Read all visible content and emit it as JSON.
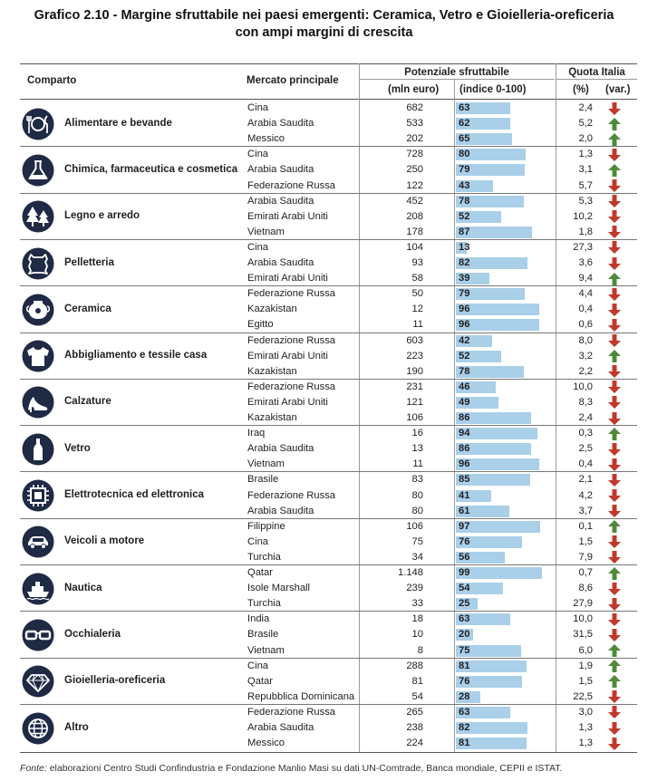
{
  "title_line1": "Grafico 2.10 - Margine sfruttabile nei paesi emergenti: Ceramica, Vetro e Gioielleria-oreficeria",
  "title_line2": "con ampi margini di crescita",
  "headers": {
    "comparto": "Comparto",
    "mercato": "Mercato principale",
    "potenziale": "Potenziale sfruttabile",
    "mln": "(mln euro)",
    "indice": "(indice 0-100)",
    "quota": "Quota Italia",
    "perc": "(%)",
    "var": "(var.)"
  },
  "colors": {
    "bar": "#a9cfe9",
    "up": "#4f8a3c",
    "down": "#c0392b"
  },
  "source_label": "Fonte:",
  "source_text": " elaborazioni Centro Studi Confindustria e Fondazione Manlio Masi su dati UN-Comtrade, Banca mondiale, CEPII e ISTAT.",
  "chart_data": {
    "type": "table",
    "index_range": [
      0,
      100
    ],
    "sectors": [
      {
        "name": "Alimentare e bevande",
        "icon": "cutlery-icon",
        "rows": [
          {
            "market": "Cina",
            "mln": "682",
            "index": 63,
            "share": "2,4",
            "trend": "down"
          },
          {
            "market": "Arabia Saudita",
            "mln": "533",
            "index": 62,
            "share": "5,2",
            "trend": "up"
          },
          {
            "market": "Messico",
            "mln": "202",
            "index": 65,
            "share": "2,0",
            "trend": "up"
          }
        ]
      },
      {
        "name": "Chimica, farmaceutica e cosmetica",
        "icon": "flask-icon",
        "rows": [
          {
            "market": "Cina",
            "mln": "728",
            "index": 80,
            "share": "1,3",
            "trend": "down"
          },
          {
            "market": "Arabia Saudita",
            "mln": "250",
            "index": 79,
            "share": "3,1",
            "trend": "up"
          },
          {
            "market": "Federazione Russa",
            "mln": "122",
            "index": 43,
            "share": "5,7",
            "trend": "down"
          }
        ]
      },
      {
        "name": "Legno e arredo",
        "icon": "trees-icon",
        "rows": [
          {
            "market": "Arabia Saudita",
            "mln": "452",
            "index": 78,
            "share": "5,3",
            "trend": "down"
          },
          {
            "market": "Emirati Arabi Uniti",
            "mln": "208",
            "index": 52,
            "share": "10,2",
            "trend": "down"
          },
          {
            "market": "Vietnam",
            "mln": "178",
            "index": 87,
            "share": "1,8",
            "trend": "down"
          }
        ]
      },
      {
        "name": "Pelletteria",
        "icon": "leather-icon",
        "rows": [
          {
            "market": "Cina",
            "mln": "104",
            "index": 13,
            "share": "27,3",
            "trend": "down"
          },
          {
            "market": "Arabia Saudita",
            "mln": "93",
            "index": 82,
            "share": "3,6",
            "trend": "down"
          },
          {
            "market": "Emirati Arabi Uniti",
            "mln": "58",
            "index": 39,
            "share": "9,4",
            "trend": "up"
          }
        ]
      },
      {
        "name": "Ceramica",
        "icon": "vase-icon",
        "rows": [
          {
            "market": "Federazione Russa",
            "mln": "50",
            "index": 79,
            "share": "4,4",
            "trend": "down"
          },
          {
            "market": "Kazakistan",
            "mln": "12",
            "index": 96,
            "share": "0,4",
            "trend": "down"
          },
          {
            "market": "Egitto",
            "mln": "11",
            "index": 96,
            "share": "0,6",
            "trend": "down"
          }
        ]
      },
      {
        "name": "Abbigliamento e tessile casa",
        "icon": "tshirt-icon",
        "rows": [
          {
            "market": "Federazione Russa",
            "mln": "603",
            "index": 42,
            "share": "8,0",
            "trend": "down"
          },
          {
            "market": "Emirati Arabi Uniti",
            "mln": "223",
            "index": 52,
            "share": "3,2",
            "trend": "up"
          },
          {
            "market": "Kazakistan",
            "mln": "190",
            "index": 78,
            "share": "2,2",
            "trend": "down"
          }
        ]
      },
      {
        "name": "Calzature",
        "icon": "shoe-icon",
        "rows": [
          {
            "market": "Federazione Russa",
            "mln": "231",
            "index": 46,
            "share": "10,0",
            "trend": "down"
          },
          {
            "market": "Emirati Arabi Uniti",
            "mln": "121",
            "index": 49,
            "share": "8,3",
            "trend": "down"
          },
          {
            "market": "Kazakistan",
            "mln": "106",
            "index": 86,
            "share": "2,4",
            "trend": "down"
          }
        ]
      },
      {
        "name": "Vetro",
        "icon": "bottle-icon",
        "rows": [
          {
            "market": "Iraq",
            "mln": "16",
            "index": 94,
            "share": "0,3",
            "trend": "up"
          },
          {
            "market": "Arabia Saudita",
            "mln": "13",
            "index": 86,
            "share": "2,5",
            "trend": "down"
          },
          {
            "market": "Vietnam",
            "mln": "11",
            "index": 96,
            "share": "0,4",
            "trend": "down"
          }
        ]
      },
      {
        "name": "Elettrotecnica ed elettronica",
        "icon": "chip-icon",
        "rows": [
          {
            "market": "Brasile",
            "mln": "83",
            "index": 85,
            "share": "2,1",
            "trend": "down"
          },
          {
            "market": "Federazione Russa",
            "mln": "80",
            "index": 41,
            "share": "4,2",
            "trend": "down"
          },
          {
            "market": "Arabia Saudita",
            "mln": "80",
            "index": 61,
            "share": "3,7",
            "trend": "down"
          }
        ]
      },
      {
        "name": "Veicoli a motore",
        "icon": "car-icon",
        "rows": [
          {
            "market": "Filippine",
            "mln": "106",
            "index": 97,
            "share": "0,1",
            "trend": "up"
          },
          {
            "market": "Cina",
            "mln": "75",
            "index": 76,
            "share": "1,5",
            "trend": "down"
          },
          {
            "market": "Turchia",
            "mln": "34",
            "index": 56,
            "share": "7,9",
            "trend": "down"
          }
        ]
      },
      {
        "name": "Nautica",
        "icon": "ship-icon",
        "rows": [
          {
            "market": "Qatar",
            "mln": "1.148",
            "index": 99,
            "share": "0,7",
            "trend": "up"
          },
          {
            "market": "Isole Marshall",
            "mln": "239",
            "index": 54,
            "share": "8,6",
            "trend": "down"
          },
          {
            "market": "Turchia",
            "mln": "33",
            "index": 25,
            "share": "27,9",
            "trend": "down"
          }
        ]
      },
      {
        "name": "Occhialeria",
        "icon": "glasses-icon",
        "rows": [
          {
            "market": "India",
            "mln": "18",
            "index": 63,
            "share": "10,0",
            "trend": "down"
          },
          {
            "market": "Brasile",
            "mln": "10",
            "index": 20,
            "share": "31,5",
            "trend": "down"
          },
          {
            "market": "Vietnam",
            "mln": "8",
            "index": 75,
            "share": "6,0",
            "trend": "up"
          }
        ]
      },
      {
        "name": "Gioielleria-oreficeria",
        "icon": "diamond-icon",
        "rows": [
          {
            "market": "Cina",
            "mln": "288",
            "index": 81,
            "share": "1,9",
            "trend": "up"
          },
          {
            "market": "Qatar",
            "mln": "81",
            "index": 76,
            "share": "1,5",
            "trend": "up"
          },
          {
            "market": "Repubblica Dominicana",
            "mln": "54",
            "index": 28,
            "share": "22,5",
            "trend": "down"
          }
        ]
      },
      {
        "name": "Altro",
        "icon": "globe-icon",
        "rows": [
          {
            "market": "Federazione Russa",
            "mln": "265",
            "index": 63,
            "share": "3,0",
            "trend": "down"
          },
          {
            "market": "Arabia Saudita",
            "mln": "238",
            "index": 82,
            "share": "1,3",
            "trend": "down"
          },
          {
            "market": "Messico",
            "mln": "224",
            "index": 81,
            "share": "1,3",
            "trend": "down"
          }
        ]
      }
    ]
  }
}
